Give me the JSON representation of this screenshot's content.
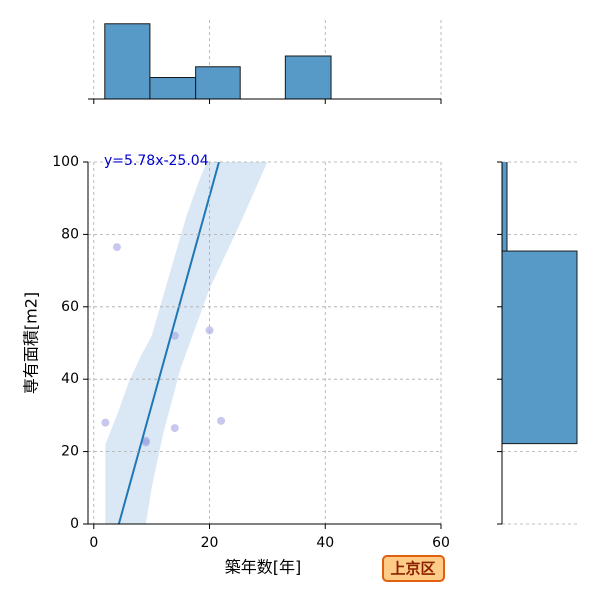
{
  "chart_data": {
    "type": "scatter",
    "xlabel": "築年数[年]",
    "ylabel": "専有面積[m2]",
    "xlim": [
      -1,
      60
    ],
    "ylim": [
      0,
      100
    ],
    "xticks": [
      0,
      20,
      40,
      60
    ],
    "yticks": [
      0,
      20,
      40,
      60,
      80,
      100
    ],
    "grid": true,
    "color": "#9b9be0",
    "x": [
      2,
      4,
      9,
      9,
      14,
      14,
      20,
      22
    ],
    "y": [
      28,
      76.5,
      22.5,
      23,
      52,
      26.5,
      53.5,
      28.5
    ],
    "fit": {
      "color": "#1f77b4",
      "equation": "y=5.78x-25.04",
      "x": [
        4.33,
        21.63
      ],
      "y": [
        0,
        100
      ]
    },
    "band": {
      "color": "#c6dbef",
      "x": [
        2,
        2,
        4,
        6,
        8,
        10,
        12,
        14,
        16,
        18,
        19.5,
        30,
        25,
        20,
        15,
        12,
        10,
        9
      ],
      "y": [
        0,
        22,
        30,
        39,
        46,
        52,
        63,
        74,
        85,
        94,
        100,
        100,
        82,
        65,
        43,
        25,
        10,
        0
      ]
    },
    "top_hist": {
      "color": "#5799c7",
      "bins": [
        1.9,
        9.7,
        17.6,
        25.3,
        33.1,
        41.0
      ],
      "counts": [
        7,
        2,
        3,
        0,
        4
      ],
      "ylim": [
        0,
        7.35
      ]
    },
    "right_hist": {
      "color": "#5799c7",
      "bins": [
        22.2,
        75.4,
        128.6
      ],
      "counts": [
        15,
        1
      ],
      "xlim": [
        0,
        15.2
      ]
    },
    "badge": "上京区"
  }
}
